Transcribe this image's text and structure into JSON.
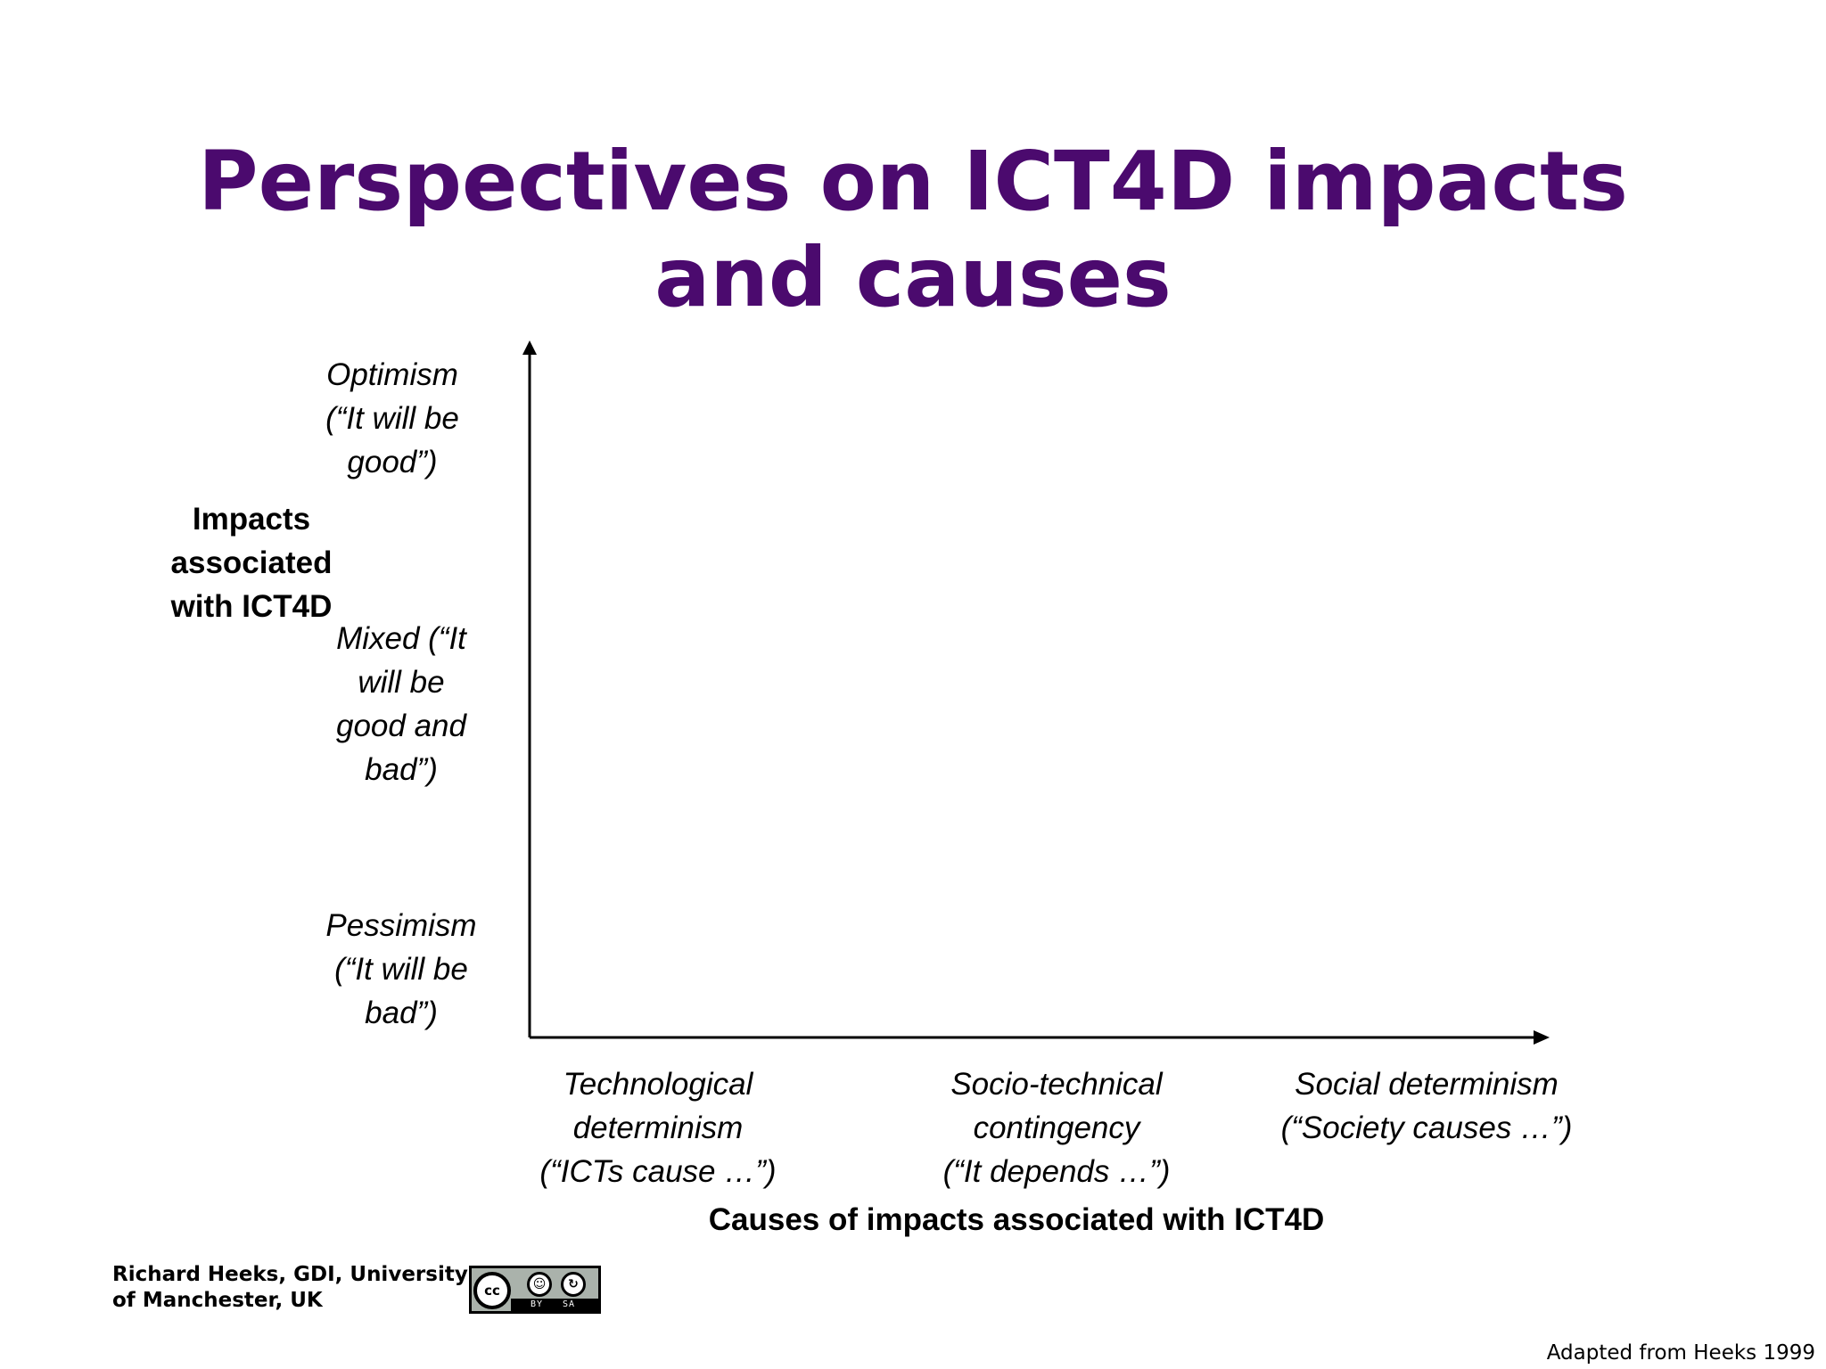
{
  "title": {
    "line1": "Perspectives on ICT4D impacts",
    "line2": "and causes"
  },
  "y_axis": {
    "label": [
      "Impacts",
      "associated",
      "with ICT4D"
    ],
    "levels": {
      "optimism": [
        "Optimism",
        "(“It will be",
        "good”)"
      ],
      "mixed": [
        "Mixed (“It",
        "will be",
        "good and",
        "bad”)"
      ],
      "pessimism": [
        "Pessimism",
        "(“It will be",
        "bad”)"
      ]
    }
  },
  "x_axis": {
    "label": "Causes of impacts associated with ICT4D",
    "categories": {
      "technological": [
        "Technological",
        "determinism",
        "(“ICTs cause …”)"
      ],
      "sociotechnical": [
        "Socio-technical",
        "contingency",
        "(“It depends …”)"
      ],
      "social": [
        "Social determinism",
        "(“Society causes …”)"
      ]
    }
  },
  "footer": {
    "credit_line1": "Richard Heeks, GDI, University",
    "credit_line2": "of Manchester, UK",
    "license": {
      "cc": "cc",
      "by": "BY",
      "sa": "SA"
    },
    "source": "Adapted from Heeks 1999"
  },
  "colors": {
    "title": "#4b0a6e",
    "text": "#000000",
    "axis": "#000000"
  }
}
